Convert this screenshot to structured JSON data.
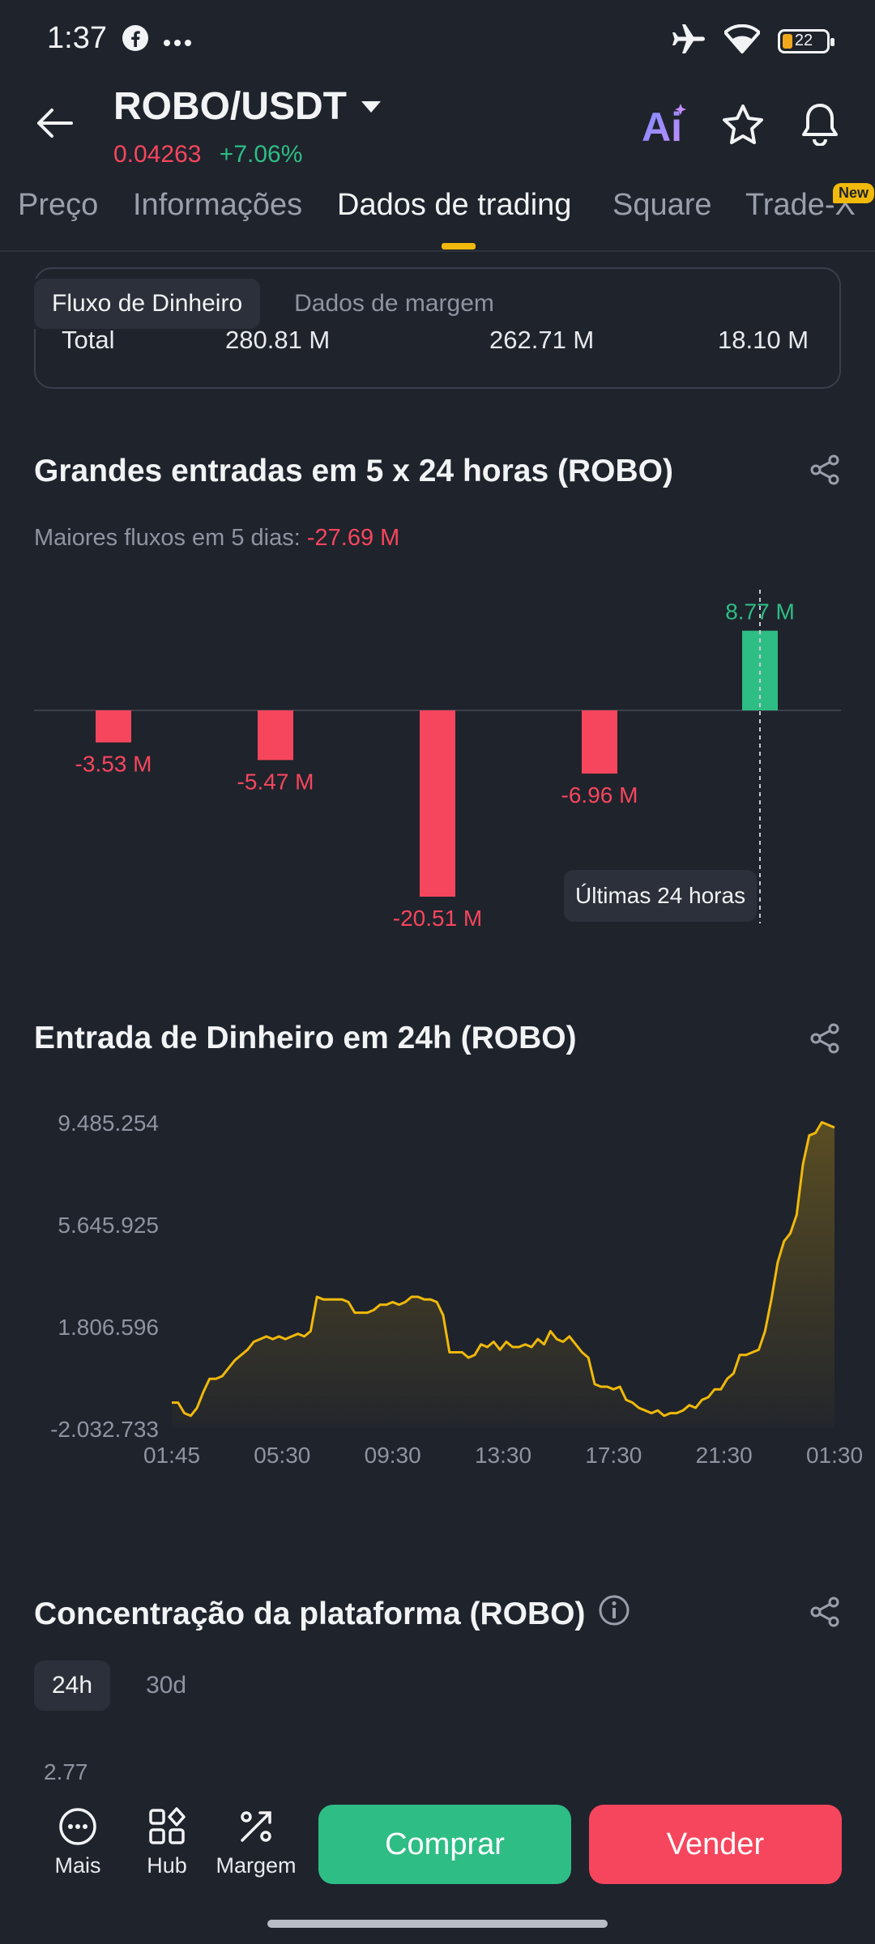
{
  "status": {
    "time": "1:37",
    "battery": "22"
  },
  "header": {
    "pair": "ROBO/USDT",
    "price": "0.04263",
    "change": "+7.06%",
    "ai_label": "Ai"
  },
  "tabs": [
    {
      "label": "Preço"
    },
    {
      "label": "Informações"
    },
    {
      "label": "Dados de trading"
    },
    {
      "label": "Square"
    },
    {
      "label": "Trade-X"
    }
  ],
  "tabs_new_badge": "New",
  "subtabs": [
    {
      "label": "Fluxo de Dinheiro"
    },
    {
      "label": "Dados de margem"
    }
  ],
  "total_row": {
    "label": "Total",
    "values": [
      "280.81 M",
      "262.71 M",
      "18.10 M"
    ]
  },
  "big_inflows": {
    "title": "Grandes entradas em 5 x 24 horas (ROBO)",
    "subtitle_label": "Maiores fluxos em 5 dias:",
    "subtitle_value": "-27.69 M",
    "tooltip": "Últimas 24 horas"
  },
  "inflow24": {
    "title": "Entrada de Dinheiro em 24h (ROBO)"
  },
  "concentration": {
    "title": "Concentração da plataforma (ROBO)",
    "chips": [
      "24h",
      "30d"
    ],
    "axis_top": "2.77"
  },
  "bottom_bar": {
    "items": [
      {
        "label": "Mais"
      },
      {
        "label": "Hub"
      },
      {
        "label": "Margem"
      }
    ],
    "buy": "Comprar",
    "sell": "Vender"
  },
  "colors": {
    "positive": "#2ebd85",
    "negative": "#f6465d",
    "accent": "#f0b90b"
  },
  "chart_data": [
    {
      "type": "bar",
      "categories": [
        "",
        "",
        "",
        "",
        ""
      ],
      "values": [
        -3.53,
        -5.47,
        -20.51,
        -6.96,
        8.77
      ],
      "labels": [
        "-3.53 M",
        "-5.47 M",
        "-20.51 M",
        "-6.96 M",
        "8.77 M"
      ],
      "title": "Grandes entradas em 5 x 24 horas (ROBO)",
      "ylim": [
        -20.51,
        8.77
      ]
    },
    {
      "type": "area",
      "title": "Entrada de Dinheiro em 24h (ROBO)",
      "x_ticks": [
        "01:45",
        "05:30",
        "09:30",
        "13:30",
        "17:30",
        "21:30",
        "01:30"
      ],
      "y_ticks": [
        "9.485.254",
        "5.645.925",
        "1.806.596",
        "-2.032.733"
      ],
      "ylim": [
        -2032733,
        9485254
      ],
      "values": [
        -1100000,
        -1100000,
        -1500000,
        -1600000,
        -1300000,
        -700000,
        -200000,
        -200000,
        -100000,
        200000,
        500000,
        700000,
        900000,
        1200000,
        1300000,
        1400000,
        1300000,
        1400000,
        1300000,
        1400000,
        1500000,
        1400000,
        1600000,
        2900000,
        2800000,
        2800000,
        2800000,
        2800000,
        2700000,
        2300000,
        2300000,
        2300000,
        2400000,
        2600000,
        2600000,
        2700000,
        2600000,
        2700000,
        2900000,
        2900000,
        2800000,
        2800000,
        2700000,
        2200000,
        800000,
        800000,
        800000,
        600000,
        700000,
        1100000,
        1000000,
        1200000,
        900000,
        1200000,
        1000000,
        1000000,
        1100000,
        1000000,
        1300000,
        1100000,
        1600000,
        1300000,
        1200000,
        1400000,
        1100000,
        800000,
        600000,
        -400000,
        -500000,
        -500000,
        -600000,
        -500000,
        -1000000,
        -1100000,
        -1300000,
        -1400000,
        -1500000,
        -1400000,
        -1600000,
        -1500000,
        -1500000,
        -1400000,
        -1200000,
        -1300000,
        -1000000,
        -900000,
        -600000,
        -600000,
        -200000,
        0,
        700000,
        700000,
        800000,
        900000,
        1600000,
        2800000,
        4200000,
        5000000,
        5300000,
        6000000,
        7900000,
        9000000,
        9100000,
        9500000,
        9400000,
        9300000
      ]
    }
  ]
}
